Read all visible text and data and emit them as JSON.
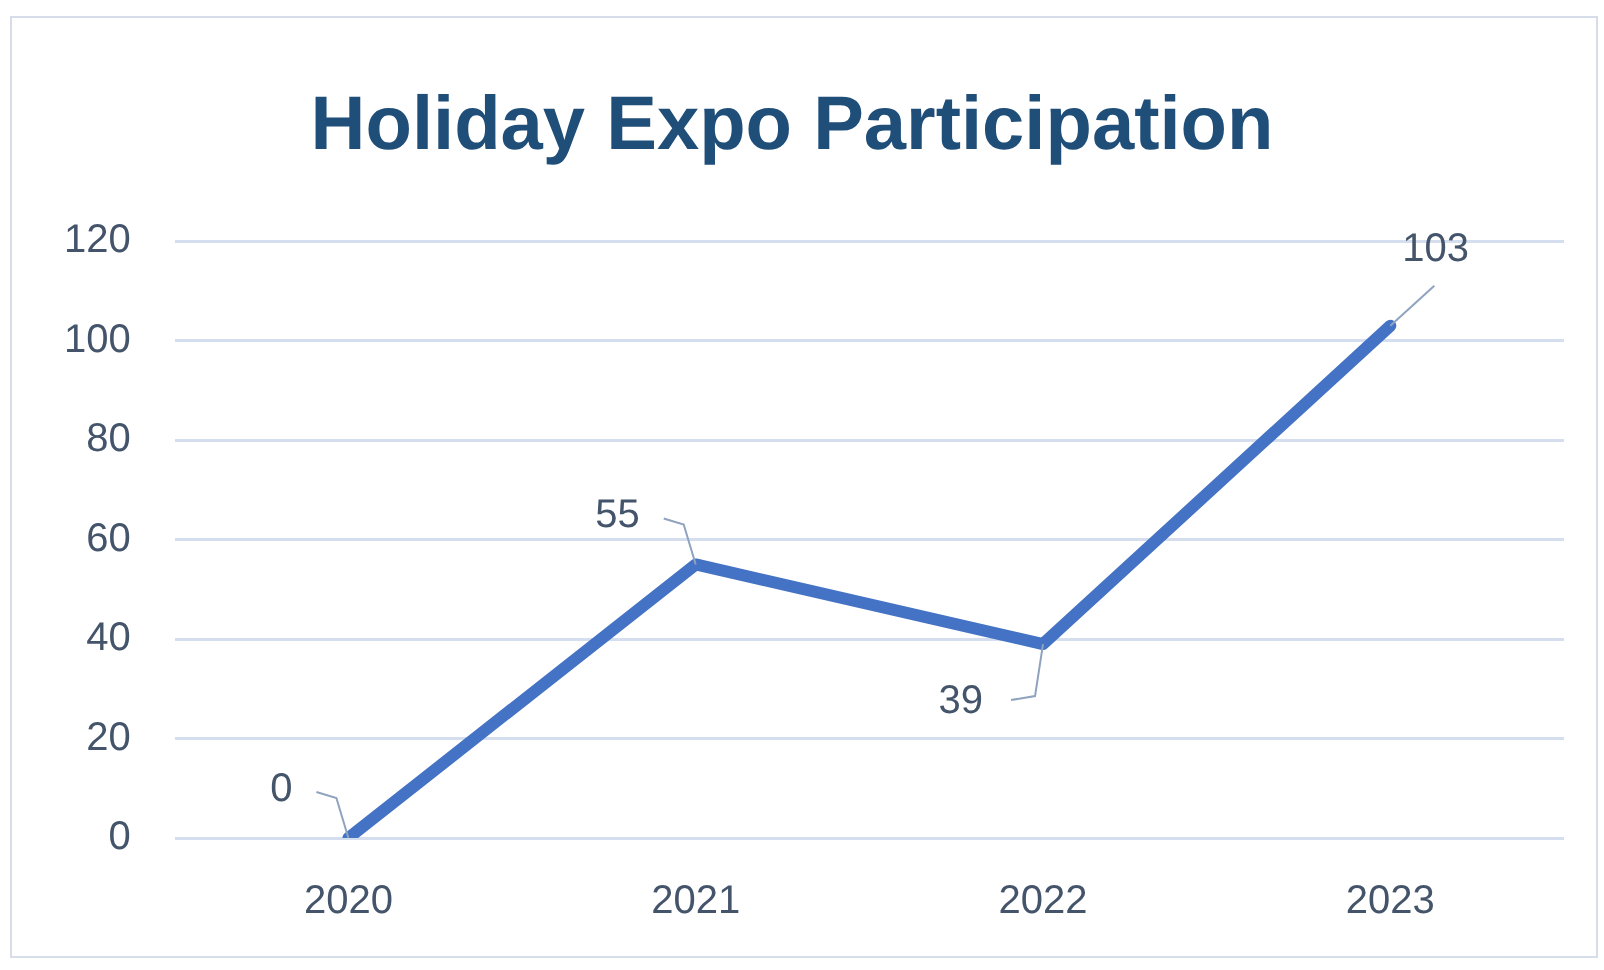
{
  "chart_data": {
    "type": "line",
    "title": "Holiday Expo Participation",
    "categories": [
      "2020",
      "2021",
      "2022",
      "2023"
    ],
    "series": [
      {
        "color": "#4472c4",
        "values": [
          0,
          55,
          39,
          103
        ]
      }
    ],
    "ylim": [
      0,
      120
    ],
    "yticks": [
      0,
      20,
      40,
      60,
      80,
      100,
      120
    ],
    "grid": "y",
    "marker": "none",
    "line_style": "solid",
    "data_labels": true
  }
}
